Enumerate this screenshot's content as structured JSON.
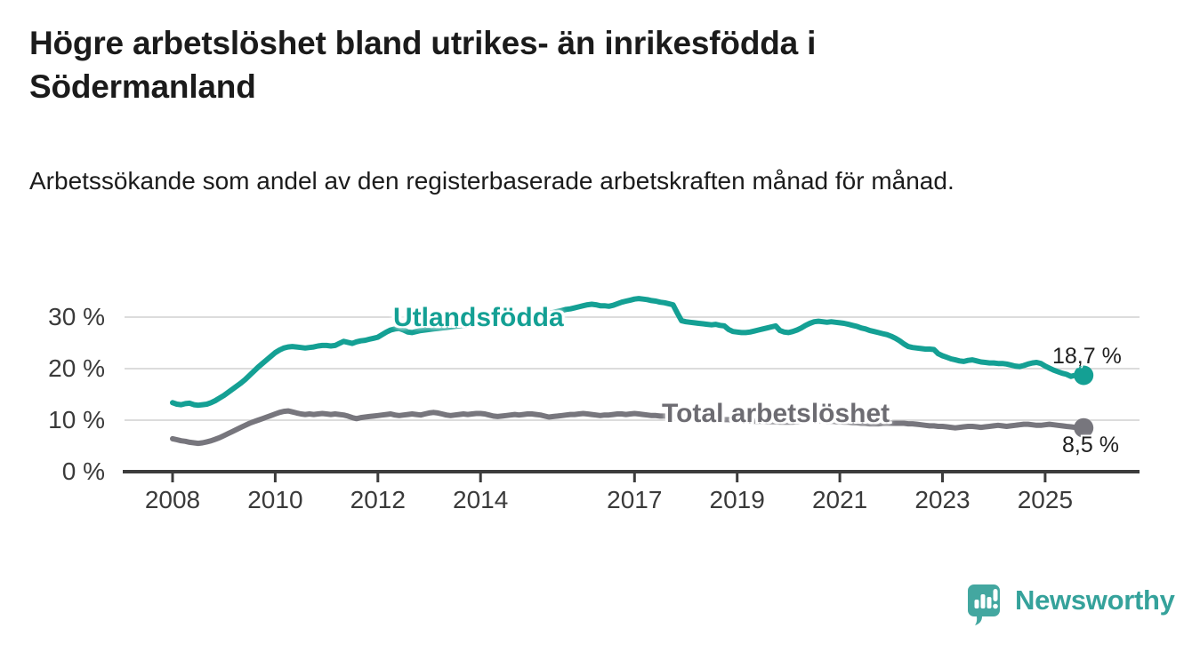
{
  "title": "Högre arbetslöshet bland utrikes- än inrikesfödda i Södermanland",
  "subtitle": "Arbetssökande som andel av den registerbaserade arbetskraften månad för månad.",
  "chart_data": {
    "type": "line",
    "unit": "%",
    "decimal_style": "comma",
    "grid": true,
    "x_axis": {
      "start": 2008.0,
      "interval": "monthly",
      "ticks": [
        2008,
        2010,
        2012,
        2014,
        2017,
        2019,
        2021,
        2023,
        2025
      ]
    },
    "y_axis": {
      "range": [
        0,
        34.5
      ],
      "ticks": [
        {
          "value": 30,
          "label": "30 %"
        },
        {
          "value": 20,
          "label": "20 %"
        },
        {
          "value": 10,
          "label": "10 %"
        },
        {
          "value": 0,
          "label": "0 %"
        }
      ]
    },
    "series": [
      {
        "name": "Utlandsfödda",
        "color": "#14a094",
        "end_label": "18,7 %",
        "end_value": 18.7,
        "values": [
          13.4,
          13.1,
          13.0,
          13.2,
          13.3,
          13.0,
          12.9,
          13.0,
          13.1,
          13.4,
          13.8,
          14.3,
          14.8,
          15.4,
          16.0,
          16.6,
          17.2,
          17.9,
          18.7,
          19.5,
          20.3,
          21.0,
          21.7,
          22.4,
          23.1,
          23.6,
          24.0,
          24.2,
          24.3,
          24.2,
          24.1,
          24.0,
          24.1,
          24.2,
          24.4,
          24.5,
          24.5,
          24.4,
          24.5,
          24.9,
          25.3,
          25.1,
          24.9,
          25.2,
          25.4,
          25.5,
          25.7,
          25.9,
          26.1,
          26.6,
          27.1,
          27.5,
          27.7,
          27.8,
          27.5,
          27.1,
          27.0,
          27.2,
          27.4,
          27.5,
          27.6,
          27.7,
          27.8,
          27.9,
          28.0,
          28.1,
          28.2,
          28.3,
          28.4,
          28.5,
          28.6,
          28.7,
          28.8,
          28.9,
          29.0,
          29.1,
          29.2,
          29.3,
          29.4,
          29.5,
          29.6,
          29.7,
          29.8,
          29.9,
          30.0,
          30.2,
          30.3,
          30.5,
          30.7,
          30.9,
          31.1,
          31.3,
          31.5,
          31.6,
          31.8,
          32.0,
          32.2,
          32.4,
          32.5,
          32.4,
          32.2,
          32.2,
          32.1,
          32.3,
          32.6,
          32.9,
          33.1,
          33.3,
          33.5,
          33.6,
          33.5,
          33.4,
          33.2,
          33.1,
          32.9,
          32.8,
          32.6,
          32.4,
          30.8,
          29.3,
          29.1,
          29.0,
          28.9,
          28.8,
          28.7,
          28.6,
          28.5,
          28.6,
          28.4,
          28.3,
          27.6,
          27.2,
          27.1,
          27.0,
          27.0,
          27.1,
          27.3,
          27.5,
          27.7,
          27.9,
          28.1,
          28.3,
          27.4,
          27.1,
          27.0,
          27.2,
          27.5,
          27.9,
          28.4,
          28.8,
          29.1,
          29.2,
          29.1,
          29.0,
          29.1,
          29.0,
          28.9,
          28.8,
          28.6,
          28.4,
          28.2,
          27.9,
          27.7,
          27.4,
          27.2,
          27.0,
          26.8,
          26.6,
          26.3,
          25.9,
          25.4,
          24.8,
          24.3,
          24.1,
          24.0,
          23.9,
          23.8,
          23.8,
          23.7,
          22.9,
          22.5,
          22.2,
          21.9,
          21.7,
          21.5,
          21.4,
          21.6,
          21.7,
          21.5,
          21.3,
          21.2,
          21.1,
          21.1,
          21.0,
          21.0,
          20.9,
          20.7,
          20.5,
          20.4,
          20.6,
          20.9,
          21.1,
          21.2,
          21.0,
          20.5,
          20.1,
          19.7,
          19.4,
          19.1,
          18.9,
          18.5,
          18.7,
          19.0,
          18.7
        ]
      },
      {
        "name": "Total arbetslöshet",
        "color": "#77767d",
        "label_color": "#6d6c72",
        "end_label": "8,5 %",
        "end_value": 8.5,
        "values": [
          6.4,
          6.2,
          6.0,
          5.9,
          5.7,
          5.6,
          5.5,
          5.6,
          5.8,
          6.0,
          6.3,
          6.6,
          7.0,
          7.4,
          7.8,
          8.2,
          8.6,
          9.0,
          9.4,
          9.7,
          10.0,
          10.3,
          10.6,
          10.9,
          11.2,
          11.5,
          11.7,
          11.8,
          11.6,
          11.4,
          11.2,
          11.1,
          11.2,
          11.1,
          11.2,
          11.3,
          11.2,
          11.1,
          11.2,
          11.1,
          11.0,
          10.8,
          10.5,
          10.3,
          10.5,
          10.6,
          10.7,
          10.8,
          10.9,
          11.0,
          11.1,
          11.2,
          11.0,
          10.9,
          11.0,
          11.1,
          11.2,
          11.1,
          11.0,
          11.2,
          11.4,
          11.5,
          11.4,
          11.2,
          11.0,
          10.9,
          11.0,
          11.1,
          11.2,
          11.1,
          11.2,
          11.3,
          11.3,
          11.2,
          11.0,
          10.8,
          10.7,
          10.8,
          10.9,
          11.0,
          11.1,
          11.0,
          11.1,
          11.2,
          11.2,
          11.1,
          11.0,
          10.8,
          10.6,
          10.7,
          10.8,
          10.9,
          11.0,
          11.1,
          11.1,
          11.2,
          11.3,
          11.2,
          11.1,
          11.0,
          10.9,
          11.0,
          11.0,
          11.1,
          11.2,
          11.2,
          11.1,
          11.2,
          11.3,
          11.2,
          11.1,
          11.0,
          10.9,
          10.9,
          10.8,
          10.8,
          10.7,
          10.7,
          10.6,
          10.6,
          10.6,
          10.5,
          10.5,
          10.4,
          10.4,
          10.3,
          10.3,
          10.2,
          10.2,
          10.1,
          10.1,
          10.0,
          10.0,
          9.9,
          9.9,
          9.9,
          9.8,
          9.8,
          9.8,
          9.7,
          9.7,
          9.7,
          9.6,
          9.6,
          9.6,
          9.6,
          9.7,
          9.8,
          9.9,
          10.0,
          10.0,
          9.9,
          9.9,
          9.8,
          9.8,
          9.7,
          9.7,
          9.6,
          9.6,
          9.5,
          9.5,
          9.4,
          9.4,
          9.3,
          9.3,
          9.3,
          9.4,
          9.4,
          9.4,
          9.4,
          9.4,
          9.4,
          9.3,
          9.3,
          9.2,
          9.1,
          9.0,
          8.9,
          8.9,
          8.8,
          8.8,
          8.7,
          8.6,
          8.5,
          8.6,
          8.7,
          8.8,
          8.8,
          8.7,
          8.6,
          8.7,
          8.8,
          8.9,
          9.0,
          8.9,
          8.8,
          8.9,
          9.0,
          9.1,
          9.2,
          9.2,
          9.1,
          9.0,
          9.0,
          9.1,
          9.2,
          9.1,
          9.0,
          8.9,
          8.8,
          8.7,
          8.6,
          8.6,
          8.5
        ]
      }
    ]
  },
  "branding": {
    "name": "Newsworthy",
    "text_color": "#35a29b",
    "icon_color": "#43a7a0",
    "icon": "speech-bubble-bar-chart"
  }
}
